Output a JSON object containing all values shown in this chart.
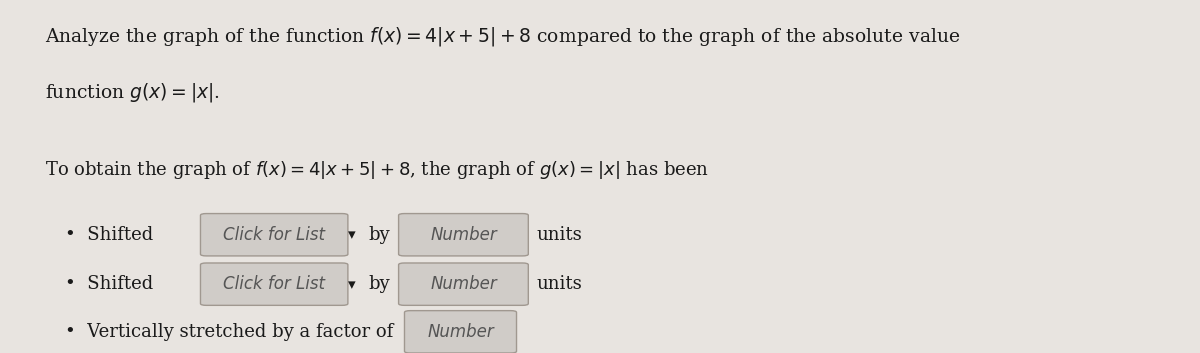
{
  "bg_color": "#e8e4e0",
  "title_line1": "Analyze the graph of the function $f(x) = 4|x + 5| + 8$ compared to the graph of the absolute value",
  "title_line2": "function $g(x) = |x|$.",
  "subtitle": "To obtain the graph of $f(x) = 4|x + 5| + 8$, the graph of $g(x) = |x|$ has been",
  "bullet1_prefix": "Shifted",
  "bullet1_box1": "Click for List",
  "bullet1_mid": "by",
  "bullet1_box2": "Number",
  "bullet1_suffix": "units",
  "bullet2_prefix": "Shifted",
  "bullet2_box1": "Click for List",
  "bullet2_mid": "by",
  "bullet2_box2": "Number",
  "bullet2_suffix": "units",
  "bullet3_prefix": "Vertically stretched by a factor of",
  "bullet3_box": "Number",
  "text_color": "#1a1a1a",
  "box_color": "#d0ccc8",
  "box_edge_color": "#a09890",
  "font_size_main": 13.5,
  "font_size_sub": 13.0,
  "font_size_bullet": 13.0
}
